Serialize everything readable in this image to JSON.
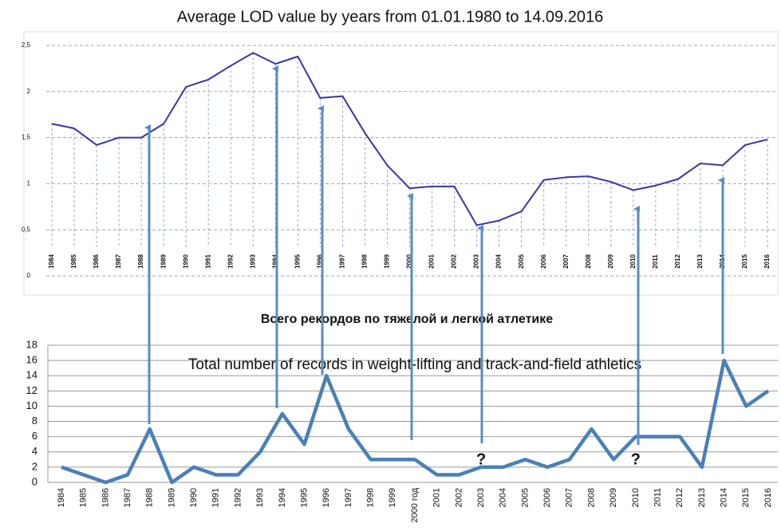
{
  "chart_data": [
    {
      "type": "line",
      "title": "Average LOD value by years from 01.01.1980 to 14.09.2016",
      "categories": [
        "1984",
        "1985",
        "1986",
        "1987",
        "1988",
        "1989",
        "1990",
        "1991",
        "1992",
        "1993",
        "1994",
        "1995",
        "1996",
        "1997",
        "1998",
        "1999",
        "2000",
        "2001",
        "2002",
        "2003",
        "2004",
        "2005",
        "2006",
        "2007",
        "2008",
        "2009",
        "2010",
        "2011",
        "2012",
        "2013",
        "2014",
        "2015",
        "2016"
      ],
      "values": [
        1.65,
        1.6,
        1.42,
        1.5,
        1.5,
        1.65,
        2.05,
        2.13,
        2.28,
        2.42,
        2.3,
        2.38,
        1.93,
        1.95,
        1.55,
        1.2,
        0.95,
        0.97,
        0.97,
        0.55,
        0.6,
        0.7,
        1.04,
        1.07,
        1.08,
        1.02,
        0.93,
        0.98,
        1.05,
        1.22,
        1.2,
        1.42,
        1.48
      ],
      "color": "#3b34a8",
      "ylim": [
        0,
        2.5
      ],
      "yticks": [
        0,
        {
          "value": 0.5,
          "label": "0,5"
        },
        1,
        {
          "value": 1.5,
          "label": "1,5"
        },
        2,
        {
          "value": 2.5,
          "label": "2,5"
        }
      ],
      "grid": true
    },
    {
      "type": "line",
      "title": "Всего рекордов по тяжелой и легкой атлетике",
      "subtitle": "Total number of records in weight-lifting and track-and-field athletics",
      "categories": [
        "1984",
        "1985",
        "1986",
        "1987",
        "1988",
        "1989",
        "1990",
        "1991",
        "1992",
        "1993",
        "1994",
        "1995",
        "1996",
        "1997",
        "1998",
        "1999",
        "2000 год",
        "2001",
        "2002",
        "2003",
        "2004",
        "2005",
        "2006",
        "2007",
        "2008",
        "2009",
        "2010",
        "2011",
        "2012",
        "2013",
        "2014",
        "2015",
        "2016"
      ],
      "values": [
        2,
        1,
        0,
        1,
        7,
        0,
        2,
        1,
        1,
        4,
        9,
        5,
        14,
        7,
        3,
        3,
        3,
        1,
        1,
        2,
        2,
        3,
        2,
        3,
        7,
        3,
        6,
        6,
        6,
        2,
        16,
        10,
        12
      ],
      "color": "#4a7fb8",
      "ylim": [
        0,
        18
      ],
      "yticks": [
        0,
        2,
        4,
        6,
        8,
        10,
        12,
        14,
        16,
        18
      ],
      "grid": true,
      "annotations": [
        {
          "text": "?",
          "category": "2003"
        },
        {
          "text": "?",
          "category": "2010"
        }
      ]
    }
  ]
}
